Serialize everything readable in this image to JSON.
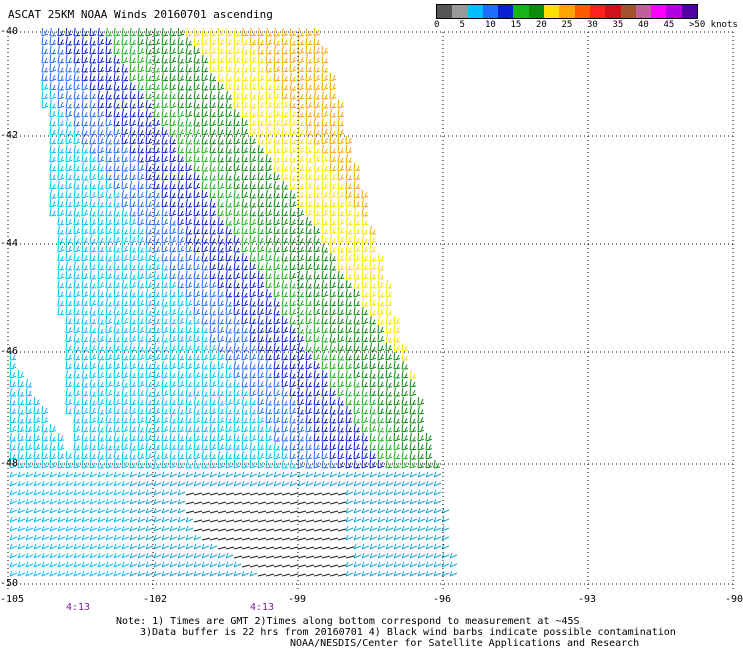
{
  "title": "ASCAT 25KM NOAA Winds 20160701 ascending",
  "legend": {
    "labels": [
      "0",
      "5",
      "10",
      "15",
      "20",
      "25",
      "30",
      "35",
      "40",
      "45",
      ">50 knots"
    ],
    "colors": [
      "#555555",
      "#999999",
      "#00bfff",
      "#1f6fff",
      "#0a1fd0",
      "#19b319",
      "#0b8c0b",
      "#ffe000",
      "#ffa500",
      "#ff5a00",
      "#ff2020",
      "#d0101a",
      "#a0522d",
      "#c0609a",
      "#ff00ff",
      "#b000e0",
      "#5000a0"
    ]
  },
  "axes": {
    "lat_labels": [
      "-40",
      "-42",
      "-44",
      "-46",
      "-48",
      "-50"
    ],
    "lon_labels": [
      "-105",
      "-102",
      "-99",
      "-96",
      "-93",
      "-90"
    ]
  },
  "time_labels": [
    "4:13",
    "4:13"
  ],
  "notes": [
    "Note: 1) Times are GMT 2)Times along bottom correspond to measurement at ~45S",
    "3)Data buffer is 22 hrs from 20160701 4) Black wind barbs indicate possible contamination",
    "NOAA/NESDIS/Center for Satellite Applications and Research"
  ]
}
